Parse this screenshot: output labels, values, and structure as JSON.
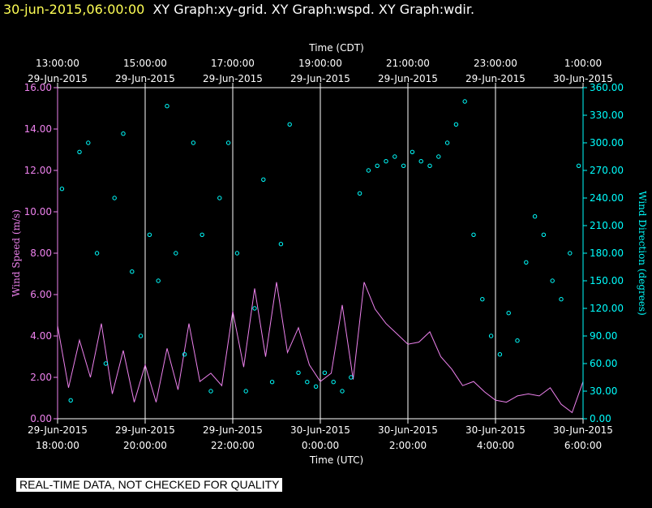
{
  "header": {
    "timestamp": "30-jun-2015,06:00:00",
    "graphs": "XY Graph:xy-grid.  XY Graph:wspd.  XY Graph:wdir."
  },
  "notice": "REAL-TIME DATA, NOT CHECKED FOR QUALITY",
  "colors": {
    "speed": "#ee82ee",
    "direction": "#00ffff",
    "axis": "#ffffff",
    "grid": "#ffffff"
  },
  "chart_data": {
    "type": "line",
    "top_axis": {
      "label": "Time (CDT)",
      "ticks": [
        {
          "time": "13:00:00",
          "date": "29-Jun-2015"
        },
        {
          "time": "15:00:00",
          "date": "29-Jun-2015"
        },
        {
          "time": "17:00:00",
          "date": "29-Jun-2015"
        },
        {
          "time": "19:00:00",
          "date": "29-Jun-2015"
        },
        {
          "time": "21:00:00",
          "date": "29-Jun-2015"
        },
        {
          "time": "23:00:00",
          "date": "29-Jun-2015"
        },
        {
          "time": "1:00:00",
          "date": "30-Jun-2015"
        }
      ]
    },
    "bottom_axis": {
      "label": "Time (UTC)",
      "ticks": [
        {
          "date": "29-Jun-2015",
          "time": "18:00:00"
        },
        {
          "date": "29-Jun-2015",
          "time": "20:00:00"
        },
        {
          "date": "29-Jun-2015",
          "time": "22:00:00"
        },
        {
          "date": "30-Jun-2015",
          "time": "0:00:00"
        },
        {
          "date": "30-Jun-2015",
          "time": "2:00:00"
        },
        {
          "date": "30-Jun-2015",
          "time": "4:00:00"
        },
        {
          "date": "30-Jun-2015",
          "time": "6:00:00"
        }
      ],
      "range_utc": [
        "2015-06-29 18:00",
        "2015-06-30 06:00"
      ]
    },
    "y_left": {
      "label": "Wind Speed (m/s)",
      "ylim": [
        0,
        16
      ],
      "ticks": [
        "0.00",
        "2.00",
        "4.00",
        "6.00",
        "8.00",
        "10.00",
        "12.00",
        "14.00",
        "16.00"
      ]
    },
    "y_right": {
      "label": "Wind Direction (degrees)",
      "ylim": [
        0,
        360
      ],
      "ticks": [
        "0.00",
        "30.00",
        "60.00",
        "90.00",
        "120.00",
        "150.00",
        "180.00",
        "210.00",
        "240.00",
        "270.00",
        "300.00",
        "330.00",
        "360.00"
      ]
    },
    "grid": {
      "vertical": true,
      "horizontal": false
    },
    "series": [
      {
        "axis": "left",
        "style": "line",
        "color": "#ee82ee",
        "x_hours": [
          0,
          0.25,
          0.5,
          0.75,
          1,
          1.25,
          1.5,
          1.75,
          2,
          2.25,
          2.5,
          2.75,
          3,
          3.25,
          3.5,
          3.75,
          4,
          4.25,
          4.5,
          4.75,
          5,
          5.25,
          5.5,
          5.75,
          6,
          6.25,
          6.5,
          6.75,
          7,
          7.25,
          7.5,
          7.75,
          8,
          8.25,
          8.5,
          8.75,
          9,
          9.25,
          9.5,
          9.75,
          10,
          10.25,
          10.5,
          10.75,
          11,
          11.25,
          11.5,
          11.75,
          12
        ],
        "values": [
          4.5,
          1.5,
          3.8,
          2.0,
          4.6,
          1.2,
          3.3,
          0.8,
          2.6,
          0.8,
          3.4,
          1.4,
          4.6,
          1.8,
          2.2,
          1.6,
          5.2,
          2.5,
          6.3,
          3.0,
          6.6,
          3.2,
          4.4,
          2.6,
          1.8,
          2.2,
          5.5,
          1.9,
          6.6,
          5.3,
          4.6,
          4.1,
          3.6,
          3.7,
          4.2,
          3.0,
          2.4,
          1.6,
          1.8,
          1.3,
          0.9,
          0.8,
          1.1,
          1.2,
          1.1,
          1.5,
          0.7,
          0.3,
          1.8
        ]
      },
      {
        "axis": "right",
        "style": "markers",
        "color": "#00ffff",
        "x_hours": [
          0.1,
          0.3,
          0.5,
          0.7,
          0.9,
          1.1,
          1.3,
          1.5,
          1.7,
          1.9,
          2.1,
          2.3,
          2.5,
          2.7,
          2.9,
          3.1,
          3.3,
          3.5,
          3.7,
          3.9,
          4.1,
          4.3,
          4.5,
          4.7,
          4.9,
          5.1,
          5.3,
          5.5,
          5.7,
          5.9,
          6.1,
          6.3,
          6.5,
          6.7,
          6.9,
          7.1,
          7.3,
          7.5,
          7.7,
          7.9,
          8.1,
          8.3,
          8.5,
          8.7,
          8.9,
          9.1,
          9.3,
          9.5,
          9.7,
          9.9,
          10.1,
          10.3,
          10.5,
          10.7,
          10.9,
          11.1,
          11.3,
          11.5,
          11.7,
          11.9
        ],
        "values": [
          250,
          20,
          290,
          300,
          180,
          60,
          240,
          310,
          160,
          90,
          200,
          150,
          340,
          180,
          70,
          300,
          200,
          30,
          240,
          300,
          180,
          30,
          120,
          260,
          40,
          190,
          320,
          50,
          40,
          35,
          50,
          40,
          30,
          45,
          245,
          270,
          275,
          280,
          285,
          275,
          290,
          280,
          275,
          285,
          300,
          320,
          345,
          200,
          130,
          90,
          70,
          115,
          85,
          170,
          220,
          200,
          150,
          130,
          180,
          275
        ]
      }
    ]
  }
}
